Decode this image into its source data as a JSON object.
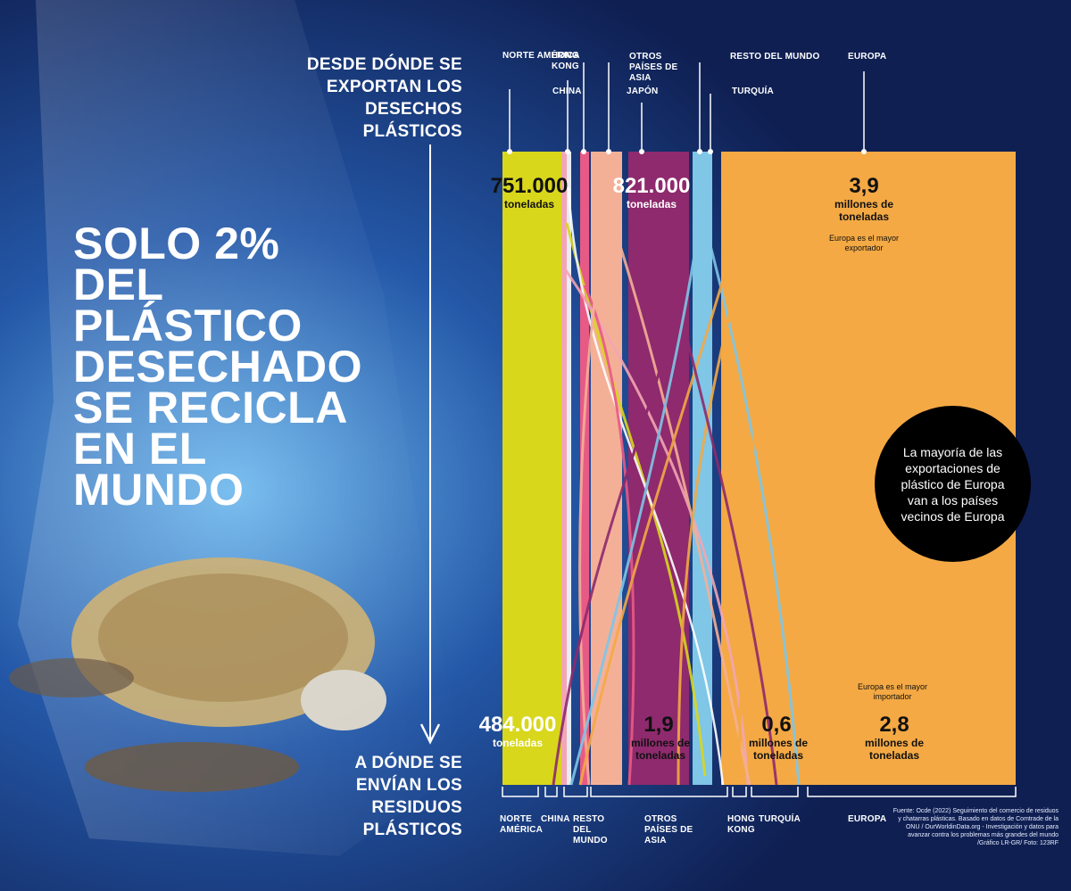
{
  "headline": "SOLO 2% DEL PLÁSTICO DESECHADO SE RECICLA EN EL MUNDO",
  "export_label": "DESDE DÓNDE SE EXPORTAN LOS DESECHOS PLÁSTICOS",
  "import_label": "A DÓNDE SE ENVÍAN LOS RESIDUOS PLÁSTICOS",
  "callout": "La mayoría de las exportaciones de plástico de Europa van a los países vecinos de Europa",
  "source": "Fuente: Ocde (2022) Seguimiento del comercio de residuos y chatarras plásticas. Basado en datos de Comtrade de la ONU / OurWorldinData.org - Investigación y datos para avanzar contra los problemas más grandes del mundo /Gráfico LR-GR/ Foto: 123RF",
  "colors": {
    "norte_america": "#d9d71c",
    "china": "#ffffff",
    "hong_kong": "#f2a6b5",
    "resto_del_mundo": "#e85a86",
    "otros_asia": "#f4b097",
    "japon": "#8e2a6d",
    "turquia": "#7fc6e7",
    "europa": "#f4a944",
    "background": "#13245a"
  },
  "chart_data": {
    "type": "sankey",
    "exporters": [
      {
        "name": "NORTE AMÉRICA",
        "value_label": "751.000",
        "unit_label": "toneladas"
      },
      {
        "name": "HONG KONG"
      },
      {
        "name": "CHINA"
      },
      {
        "name": "OTROS PAÍSES DE ASIA"
      },
      {
        "name": "JAPÓN",
        "value_label": "821.000",
        "unit_label": "toneladas"
      },
      {
        "name": "RESTO DEL MUNDO"
      },
      {
        "name": "TURQUÍA"
      },
      {
        "name": "EUROPA",
        "value_label": "3,9",
        "unit_label": "millones de toneladas",
        "note": "Europa es el mayor exportador"
      }
    ],
    "importers": [
      {
        "name": "NORTE AMÉRICA",
        "value_label": "484.000",
        "unit_label": "toneladas"
      },
      {
        "name": "CHINA"
      },
      {
        "name": "RESTO DEL MUNDO"
      },
      {
        "name": "OTROS PAÍSES DE ASIA",
        "value_label": "1,9",
        "unit_label": "millones de toneladas"
      },
      {
        "name": "HONG KONG"
      },
      {
        "name": "TURQUÍA",
        "value_label": "0,6",
        "unit_label": "millones de toneladas"
      },
      {
        "name": "EUROPA",
        "value_label": "2,8",
        "unit_label": "millones de toneladas",
        "note": "Europa es el mayor importador"
      }
    ]
  }
}
